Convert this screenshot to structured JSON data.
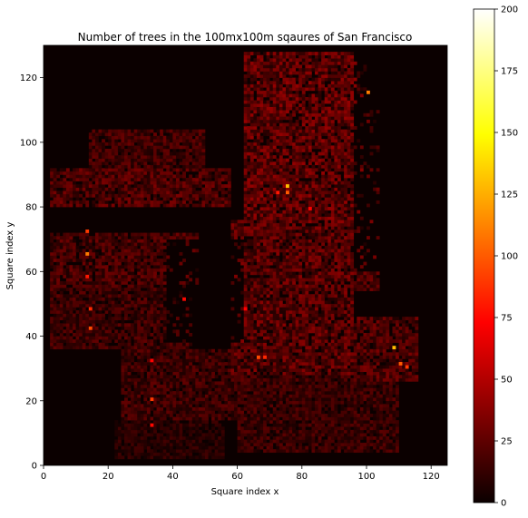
{
  "chart_data": {
    "type": "heatmap",
    "title": "Number of trees in the 100mx100m sqaures of San Francisco",
    "xlabel": "Square index x",
    "ylabel": "Square index y",
    "xlim": [
      0,
      125
    ],
    "ylim": [
      0,
      130
    ],
    "x_ticks": [
      0,
      20,
      40,
      60,
      80,
      100,
      120
    ],
    "y_ticks": [
      0,
      20,
      40,
      60,
      80,
      100,
      120
    ],
    "colormap": "hot",
    "colorbar": {
      "min": 0,
      "max": 200,
      "ticks": [
        0,
        25,
        50,
        75,
        100,
        125,
        150,
        175,
        200
      ]
    },
    "grid": false,
    "regions": [
      {
        "x": [
          62,
          100
        ],
        "y": [
          75,
          128
        ],
        "value": 22
      },
      {
        "x": [
          58,
          96
        ],
        "y": [
          28,
          76
        ],
        "value": 20
      },
      {
        "x": [
          2,
          58
        ],
        "y": [
          80,
          92
        ],
        "value": 18
      },
      {
        "x": [
          14,
          50
        ],
        "y": [
          92,
          104
        ],
        "value": 15
      },
      {
        "x": [
          2,
          48
        ],
        "y": [
          56,
          72
        ],
        "value": 16
      },
      {
        "x": [
          2,
          46
        ],
        "y": [
          36,
          56
        ],
        "value": 14
      },
      {
        "x": [
          24,
          64
        ],
        "y": [
          14,
          36
        ],
        "value": 14
      },
      {
        "x": [
          60,
          110
        ],
        "y": [
          4,
          30
        ],
        "value": 13
      },
      {
        "x": [
          96,
          116
        ],
        "y": [
          26,
          46
        ],
        "value": 18
      },
      {
        "x": [
          76,
          104
        ],
        "y": [
          54,
          110
        ],
        "value": 18
      },
      {
        "x": [
          22,
          56
        ],
        "y": [
          2,
          14
        ],
        "value": 9
      }
    ],
    "gaps": [
      {
        "x": [
          0,
          48
        ],
        "y": [
          73,
          80
        ]
      },
      {
        "x": [
          38,
          62
        ],
        "y": [
          38,
          70
        ]
      },
      {
        "x": [
          0,
          62
        ],
        "y": [
          104,
          130
        ]
      },
      {
        "x": [
          96,
          125
        ],
        "y": [
          60,
          130
        ]
      },
      {
        "x": [
          0,
          8
        ],
        "y": [
          0,
          36
        ]
      },
      {
        "x": [
          0,
          20
        ],
        "y": [
          0,
          22
        ]
      }
    ],
    "hotspots": [
      {
        "x": 13,
        "y": 72,
        "value": 90
      },
      {
        "x": 13,
        "y": 65,
        "value": 110
      },
      {
        "x": 13,
        "y": 58,
        "value": 80
      },
      {
        "x": 14,
        "y": 48,
        "value": 85
      },
      {
        "x": 14,
        "y": 42,
        "value": 95
      },
      {
        "x": 33,
        "y": 32,
        "value": 70
      },
      {
        "x": 33,
        "y": 20,
        "value": 90
      },
      {
        "x": 33,
        "y": 12,
        "value": 75
      },
      {
        "x": 75,
        "y": 86,
        "value": 130
      },
      {
        "x": 75,
        "y": 84,
        "value": 100
      },
      {
        "x": 72,
        "y": 84,
        "value": 80
      },
      {
        "x": 100,
        "y": 115,
        "value": 110
      },
      {
        "x": 108,
        "y": 36,
        "value": 130
      },
      {
        "x": 110,
        "y": 31,
        "value": 100
      },
      {
        "x": 112,
        "y": 30,
        "value": 90
      },
      {
        "x": 66,
        "y": 33,
        "value": 95
      },
      {
        "x": 68,
        "y": 33,
        "value": 85
      },
      {
        "x": 43,
        "y": 51,
        "value": 75
      },
      {
        "x": 62,
        "y": 48,
        "value": 70
      },
      {
        "x": 82,
        "y": 79,
        "value": 70
      }
    ]
  }
}
